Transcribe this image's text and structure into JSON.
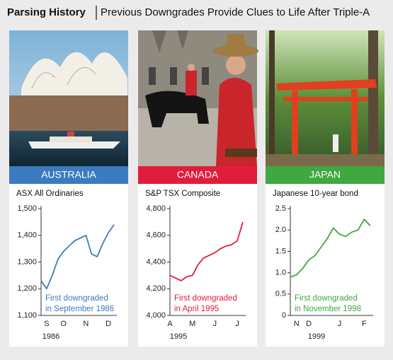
{
  "header": {
    "title": "Parsing History",
    "subtitle": "Previous Downgrades Provide Clues to Life After Triple-A"
  },
  "panels": [
    {
      "label": "AUSTRALIA",
      "color": "#3b7cc0"
    },
    {
      "label": "CANADA",
      "color": "#e11d3c"
    },
    {
      "label": "JAPAN",
      "color": "#3fa83f"
    }
  ],
  "chart_data": [
    {
      "type": "line",
      "title": "ASX All Ordinaries",
      "x_label": "1986",
      "annotation": [
        "First downgraded",
        "in September 1986"
      ],
      "categories": [
        null,
        "S",
        null,
        null,
        "O",
        null,
        null,
        null,
        "N",
        null,
        null,
        null,
        "D",
        null
      ],
      "series": [
        {
          "color": "#3b7cc0",
          "values": [
            1230,
            1200,
            1250,
            1310,
            1340,
            1360,
            1380,
            1390,
            1400,
            1330,
            1320,
            1370,
            1410,
            1440
          ]
        }
      ],
      "ylim": [
        1100,
        1500
      ],
      "yticks": [
        {
          "value": 1100,
          "label": "1,100"
        },
        {
          "value": 1200,
          "label": "1,200"
        },
        {
          "value": 1300,
          "label": "1,300"
        },
        {
          "value": 1400,
          "label": "1,400"
        },
        {
          "value": 1500,
          "label": "1,500"
        }
      ]
    },
    {
      "type": "line",
      "title": "S&P TSX Composite",
      "x_label": "1995",
      "annotation": [
        "First downgraded",
        "in April 1995"
      ],
      "categories": [
        "A",
        null,
        null,
        null,
        "M",
        null,
        null,
        null,
        "J",
        null,
        null,
        null,
        "J",
        null
      ],
      "series": [
        {
          "color": "#e11d3c",
          "values": [
            4300,
            4280,
            4260,
            4290,
            4300,
            4380,
            4430,
            4450,
            4470,
            4500,
            4520,
            4530,
            4560,
            4700
          ]
        }
      ],
      "ylim": [
        4000,
        4800
      ],
      "yticks": [
        {
          "value": 4000,
          "label": "4,000"
        },
        {
          "value": 4200,
          "label": "4,200"
        },
        {
          "value": 4400,
          "label": "4,400"
        },
        {
          "value": 4600,
          "label": "4,600"
        },
        {
          "value": 4800,
          "label": "4,800"
        }
      ]
    },
    {
      "type": "line",
      "title": "Japanese 10-year bond",
      "x_label": "1999",
      "annotation": [
        "First downgraded",
        "in November 1998"
      ],
      "categories": [
        null,
        "N",
        null,
        "D",
        null,
        null,
        null,
        null,
        "J",
        null,
        null,
        null,
        "F",
        null
      ],
      "series": [
        {
          "color": "#3fa83f",
          "values": [
            0.9,
            0.95,
            1.1,
            1.3,
            1.4,
            1.6,
            1.8,
            2.05,
            1.9,
            1.85,
            1.95,
            2.0,
            2.25,
            2.1
          ]
        }
      ],
      "ylim": [
        0,
        2.5
      ],
      "yticks": [
        0,
        0.5,
        {
          "value": 1,
          "label": "1.0"
        },
        1.5,
        {
          "value": 2,
          "label": "2.0"
        },
        2.5
      ]
    }
  ]
}
